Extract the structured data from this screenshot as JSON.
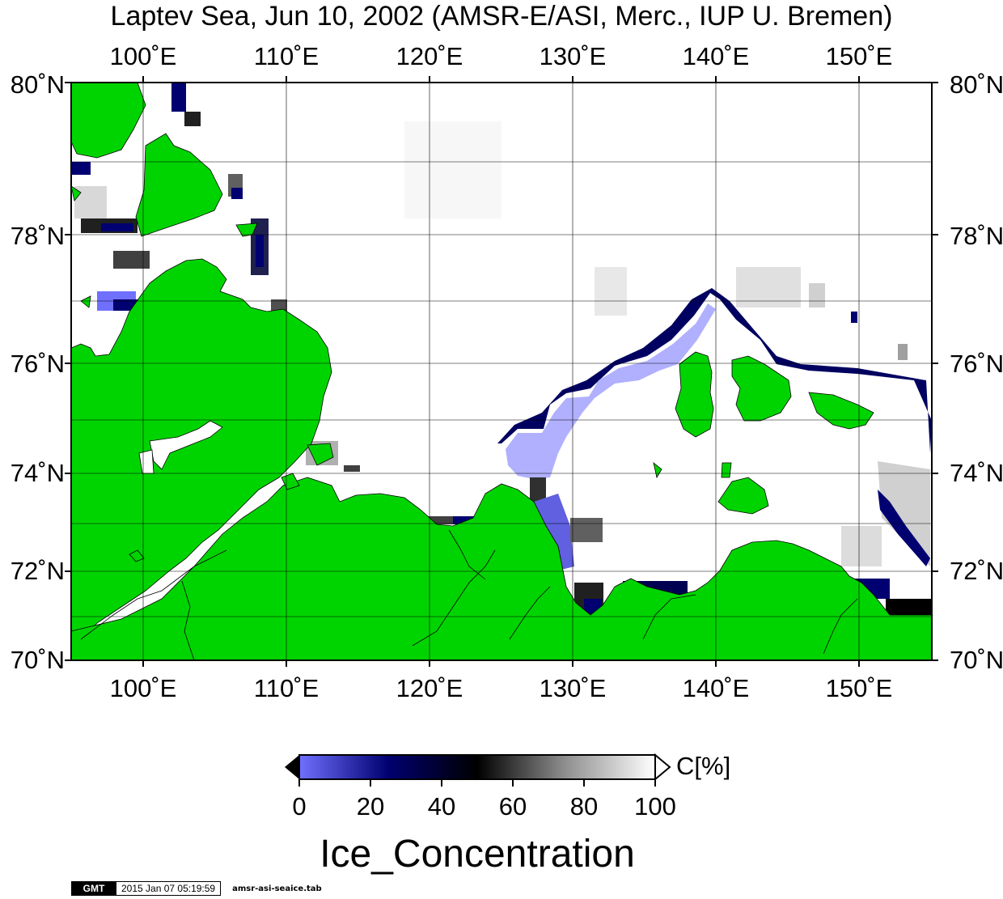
{
  "title": "Laptev Sea, Jun 10, 2002 (AMSR-E/ASI, Merc., IUP U. Bremen)",
  "map": {
    "projection": "Mercator",
    "lon_range": [
      95,
      155
    ],
    "lat_range": [
      70,
      80
    ],
    "lon_ticks": [
      {
        "value": 100,
        "label": "100˚E"
      },
      {
        "value": 110,
        "label": "110˚E"
      },
      {
        "value": 120,
        "label": "120˚E"
      },
      {
        "value": 130,
        "label": "130˚E"
      },
      {
        "value": 140,
        "label": "140˚E"
      },
      {
        "value": 150,
        "label": "150˚E"
      }
    ],
    "lat_ticks": [
      {
        "value": 70,
        "label": "70˚N"
      },
      {
        "value": 72,
        "label": "72˚N"
      },
      {
        "value": 74,
        "label": "74˚N"
      },
      {
        "value": 76,
        "label": "76˚N"
      },
      {
        "value": 78,
        "label": "78˚N"
      },
      {
        "value": 80,
        "label": "80˚N"
      }
    ],
    "land_color": "#00d400",
    "open_water_color": "#ffffff",
    "grid": true
  },
  "colorbar": {
    "unit": "C[%]",
    "title": "Ice_Concentration",
    "ticks": [
      "0",
      "20",
      "40",
      "60",
      "80",
      "100"
    ],
    "range": [
      0,
      100
    ],
    "stops": [
      "#7070ff",
      "#000070",
      "#000000",
      "#909090",
      "#ffffff"
    ]
  },
  "footer": {
    "logo": "GMT",
    "timestamp": "2015 Jan 07 05:19:59",
    "command": "amsr-asi-seaice.tab"
  }
}
